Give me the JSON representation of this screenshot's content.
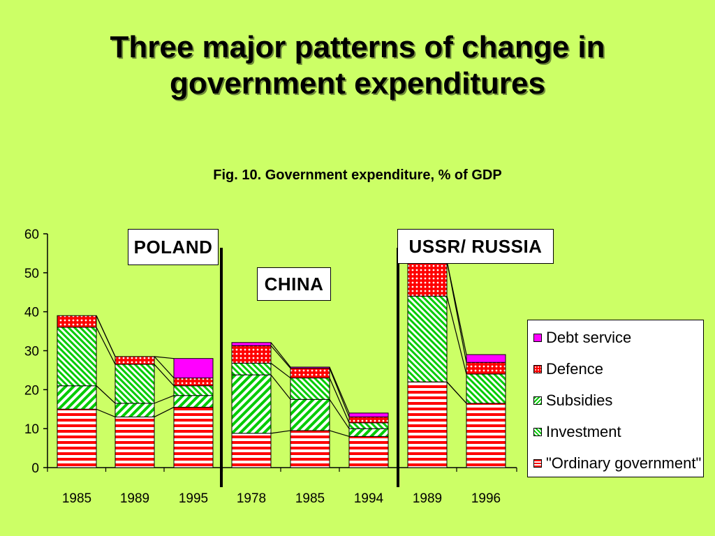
{
  "slide": {
    "title_line1": "Three major patterns of change in",
    "title_line2": "government expenditures"
  },
  "chart_data": {
    "type": "bar",
    "title": "Fig. 10. Government expenditure, % of GDP",
    "stacked": true,
    "ylim": [
      0,
      60
    ],
    "yticks": [
      0,
      10,
      20,
      30,
      40,
      50,
      60
    ],
    "categories": [
      "1985",
      "1989",
      "1995",
      "1978",
      "1985",
      "1994",
      "1989",
      "1996"
    ],
    "groups": [
      {
        "label": "POLAND",
        "categories": [
          "1985",
          "1989",
          "1995"
        ]
      },
      {
        "label": "CHINA",
        "categories": [
          "1978",
          "1985",
          "1994"
        ]
      },
      {
        "label": "USSR/ RUSSIA",
        "categories": [
          "1989",
          "1996"
        ]
      }
    ],
    "series": [
      {
        "name": "\"Ordinary government\"",
        "color": "#ff0000",
        "pattern": "horizontal-stripes",
        "values": [
          15,
          13,
          15.5,
          8.8,
          9.5,
          8,
          22,
          16.5
        ]
      },
      {
        "name": "Investment",
        "color": "#00cc00",
        "pattern": "diagonal-stripes",
        "values": [
          6,
          3.5,
          3,
          15,
          8,
          2,
          0,
          0
        ]
      },
      {
        "name": "Subsidies",
        "color": "#00cc00",
        "pattern": "diagonal-stripes-dense",
        "values": [
          15,
          10,
          2.5,
          3,
          5.5,
          1.5,
          22,
          7.5
        ]
      },
      {
        "name": "Defence",
        "color": "#ff0000",
        "pattern": "dots",
        "values": [
          3,
          2,
          2,
          4.5,
          2.5,
          1.5,
          9,
          3
        ]
      },
      {
        "name": "Debt service",
        "color": "#ff00ff",
        "pattern": "solid",
        "values": [
          0,
          0,
          5,
          0.8,
          0.3,
          1,
          0,
          2
        ]
      }
    ],
    "legend_order": [
      "Debt service",
      "Defence",
      "Subsidies",
      "Investment",
      "\"Ordinary government\""
    ],
    "legend_position": "right",
    "grid": false
  }
}
